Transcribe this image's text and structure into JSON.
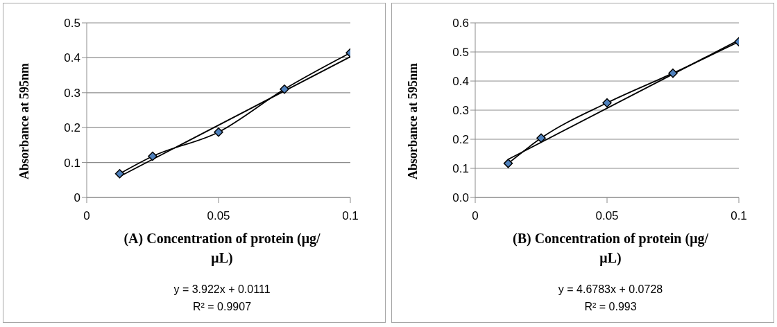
{
  "chart_data": [
    {
      "type": "line",
      "xlabel": "(A)  Concentration  of protein (μg/μL)",
      "ylabel": "Absorbance  at 595nm",
      "xlim": [
        0,
        0.1
      ],
      "xticks": [
        0,
        0.05,
        0.1
      ],
      "ylim": [
        0,
        0.5
      ],
      "yticks": [
        0,
        0.1,
        0.2,
        0.3,
        0.4,
        0.5
      ],
      "grid": "y",
      "marker": "diamond",
      "series": [
        {
          "x": [
            0.0125,
            0.025,
            0.05,
            0.075,
            0.1
          ],
          "values": [
            0.068,
            0.118,
            0.187,
            0.31,
            0.414
          ],
          "color": "#4f81bd"
        },
        {
          "type": "line",
          "x": [
            0.0125,
            0.1
          ],
          "values": [
            0.06,
            0.403
          ],
          "color": "#000000",
          "marker": "none"
        }
      ],
      "annotations": [
        "y = 3.922x + 0.0111",
        "R² = 0.9907"
      ]
    },
    {
      "type": "line",
      "xlabel": "(B) Concentration  of protein (μg/μL)",
      "ylabel": "Absorbance  at 595nm",
      "xlim": [
        0,
        0.1
      ],
      "xticks": [
        0,
        0.05,
        0.1
      ],
      "ylim": [
        0,
        0.6
      ],
      "yticks": [
        {
          "value": 0,
          "label": "0.0"
        },
        0.1,
        0.2,
        0.3,
        0.4,
        0.5,
        0.6
      ],
      "grid": "y",
      "marker": "diamond",
      "series": [
        {
          "x": [
            0.0125,
            0.025,
            0.05,
            0.075,
            0.1
          ],
          "values": [
            0.117,
            0.204,
            0.325,
            0.427,
            0.535
          ],
          "color": "#4f81bd"
        },
        {
          "type": "line",
          "x": [
            0.0125,
            0.1
          ],
          "values": [
            0.131,
            0.541
          ],
          "color": "#000000",
          "marker": "none"
        }
      ],
      "annotations": [
        "y = 4.6783x + 0.0728",
        "R² = 0.993"
      ]
    }
  ]
}
